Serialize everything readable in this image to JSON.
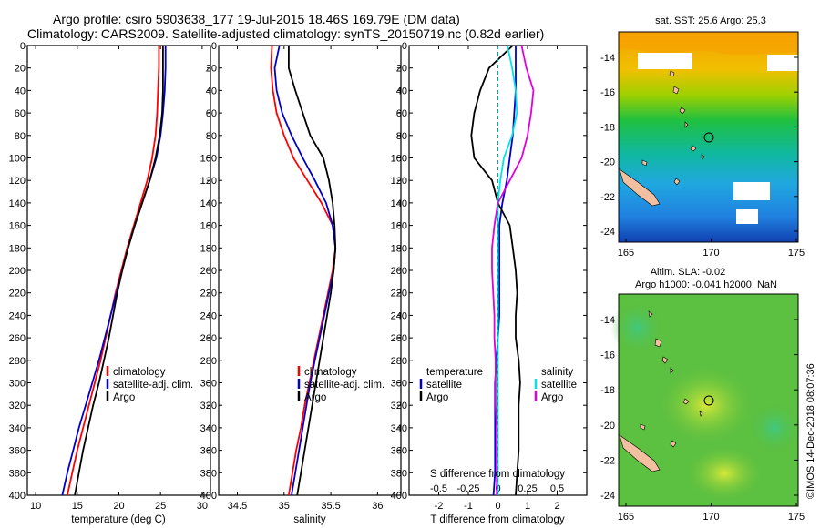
{
  "title": {
    "line1": "Argo profile: csiro 5903638_177 19-Jul-2015 18.46S 169.79E (DM data)",
    "line2": "Climatology: CARS2009. Satellite-adjusted climatology: synTS_20150719.nc (0.82d earlier)"
  },
  "depth_ticks": [
    0,
    20,
    40,
    60,
    80,
    100,
    120,
    140,
    160,
    180,
    200,
    220,
    240,
    260,
    280,
    300,
    320,
    340,
    360,
    380,
    400
  ],
  "colors": {
    "climatology": "#ff0000",
    "satellite": "#0000cc",
    "argo": "#000000",
    "sat_salinity": "#00e5e5",
    "argo_salinity": "#e000e0"
  },
  "legend": {
    "climatology": "climatology",
    "satellite_adj": "satellite-adj. clim.",
    "argo": "Argo"
  },
  "diff_legend": {
    "temperature": "temperature",
    "salinity": "salinity",
    "satellite": "satellite",
    "argo": "Argo"
  },
  "chart_data": [
    {
      "type": "line",
      "xlabel": "temperature (deg C)",
      "xlim": [
        9,
        31
      ],
      "ylim": [
        0,
        400
      ],
      "yinverted": true,
      "xticks": [
        10,
        15,
        20,
        25,
        30
      ],
      "series": [
        {
          "name": "climatology",
          "color": "#ff0000",
          "points": [
            [
              24.8,
              0
            ],
            [
              24.8,
              20
            ],
            [
              24.7,
              40
            ],
            [
              24.6,
              60
            ],
            [
              24.4,
              80
            ],
            [
              24.0,
              100
            ],
            [
              23.4,
              120
            ],
            [
              22.6,
              140
            ],
            [
              21.8,
              160
            ],
            [
              21.0,
              180
            ],
            [
              20.3,
              200
            ],
            [
              19.6,
              220
            ],
            [
              19.0,
              240
            ],
            [
              18.4,
              260
            ],
            [
              17.8,
              280
            ],
            [
              17.1,
              300
            ],
            [
              16.4,
              320
            ],
            [
              15.7,
              340
            ],
            [
              15.0,
              360
            ],
            [
              14.4,
              380
            ],
            [
              13.8,
              400
            ]
          ]
        },
        {
          "name": "satellite-adj. clim.",
          "color": "#0000cc",
          "points": [
            [
              25.6,
              0
            ],
            [
              25.6,
              20
            ],
            [
              25.5,
              40
            ],
            [
              25.3,
              60
            ],
            [
              25.0,
              80
            ],
            [
              24.5,
              100
            ],
            [
              23.7,
              120
            ],
            [
              22.8,
              140
            ],
            [
              21.9,
              160
            ],
            [
              21.1,
              180
            ],
            [
              20.4,
              200
            ],
            [
              19.7,
              220
            ],
            [
              19.0,
              240
            ],
            [
              18.3,
              260
            ],
            [
              17.6,
              280
            ],
            [
              16.8,
              300
            ],
            [
              16.0,
              320
            ],
            [
              15.2,
              340
            ],
            [
              14.5,
              360
            ],
            [
              13.8,
              380
            ],
            [
              13.2,
              400
            ]
          ]
        },
        {
          "name": "Argo",
          "color": "#000000",
          "points": [
            [
              25.3,
              0
            ],
            [
              25.3,
              20
            ],
            [
              25.3,
              40
            ],
            [
              25.2,
              60
            ],
            [
              24.9,
              80
            ],
            [
              24.4,
              100
            ],
            [
              23.7,
              120
            ],
            [
              22.8,
              140
            ],
            [
              21.9,
              160
            ],
            [
              21.1,
              180
            ],
            [
              20.4,
              200
            ],
            [
              19.8,
              220
            ],
            [
              19.3,
              240
            ],
            [
              18.8,
              260
            ],
            [
              18.2,
              280
            ],
            [
              17.6,
              300
            ],
            [
              16.9,
              320
            ],
            [
              16.3,
              340
            ],
            [
              15.7,
              360
            ],
            [
              15.2,
              380
            ],
            [
              14.7,
              400
            ]
          ]
        }
      ]
    },
    {
      "type": "line",
      "xlabel": "salinity",
      "xlim": [
        34.3,
        36.25
      ],
      "ylim": [
        0,
        400
      ],
      "yinverted": true,
      "xticks": [
        34.5,
        35,
        35.5,
        36
      ],
      "series": [
        {
          "name": "climatology",
          "color": "#ff0000",
          "points": [
            [
              34.87,
              0
            ],
            [
              34.86,
              20
            ],
            [
              34.88,
              40
            ],
            [
              34.92,
              60
            ],
            [
              35.0,
              80
            ],
            [
              35.1,
              100
            ],
            [
              35.25,
              120
            ],
            [
              35.4,
              140
            ],
            [
              35.52,
              160
            ],
            [
              35.55,
              180
            ],
            [
              35.52,
              200
            ],
            [
              35.47,
              220
            ],
            [
              35.42,
              240
            ],
            [
              35.37,
              260
            ],
            [
              35.32,
              280
            ],
            [
              35.27,
              300
            ],
            [
              35.22,
              320
            ],
            [
              35.18,
              340
            ],
            [
              35.13,
              360
            ],
            [
              35.09,
              380
            ],
            [
              35.05,
              400
            ]
          ]
        },
        {
          "name": "satellite-adj. clim.",
          "color": "#0000cc",
          "points": [
            [
              34.95,
              0
            ],
            [
              34.9,
              20
            ],
            [
              34.92,
              40
            ],
            [
              34.98,
              60
            ],
            [
              35.08,
              80
            ],
            [
              35.2,
              100
            ],
            [
              35.33,
              120
            ],
            [
              35.45,
              140
            ],
            [
              35.52,
              160
            ],
            [
              35.55,
              180
            ],
            [
              35.53,
              200
            ],
            [
              35.48,
              220
            ],
            [
              35.43,
              240
            ],
            [
              35.38,
              260
            ],
            [
              35.33,
              280
            ],
            [
              35.28,
              300
            ],
            [
              35.24,
              320
            ],
            [
              35.2,
              340
            ],
            [
              35.16,
              360
            ],
            [
              35.12,
              380
            ],
            [
              35.08,
              400
            ]
          ]
        },
        {
          "name": "Argo",
          "color": "#000000",
          "points": [
            [
              35.05,
              0
            ],
            [
              35.05,
              20
            ],
            [
              35.12,
              40
            ],
            [
              35.2,
              60
            ],
            [
              35.28,
              80
            ],
            [
              35.42,
              100
            ],
            [
              35.48,
              120
            ],
            [
              35.52,
              140
            ],
            [
              35.54,
              160
            ],
            [
              35.55,
              180
            ],
            [
              35.53,
              200
            ],
            [
              35.5,
              220
            ],
            [
              35.46,
              240
            ],
            [
              35.42,
              260
            ],
            [
              35.38,
              280
            ],
            [
              35.34,
              300
            ],
            [
              35.3,
              320
            ],
            [
              35.26,
              340
            ],
            [
              35.22,
              360
            ],
            [
              35.18,
              380
            ],
            [
              35.14,
              400
            ]
          ]
        }
      ]
    },
    {
      "type": "line",
      "xlabel": "T difference from climatology",
      "xlabel2": "S difference from climatology",
      "xlim": [
        -3,
        3
      ],
      "ylim": [
        0,
        400
      ],
      "yinverted": true,
      "xticks": [
        -2,
        -1,
        0,
        1,
        2
      ],
      "xticks2": [
        -0.5,
        -0.25,
        0,
        0.25,
        0.5
      ],
      "xtick2_labels": [
        "-0.5",
        "-0.25",
        "0",
        "0.25",
        "0.5"
      ],
      "series": [
        {
          "name": "T satellite",
          "color": "#0000cc",
          "points": [
            [
              0.6,
              0
            ],
            [
              0.6,
              20
            ],
            [
              0.6,
              40
            ],
            [
              0.55,
              60
            ],
            [
              0.5,
              80
            ],
            [
              0.4,
              100
            ],
            [
              0.3,
              120
            ],
            [
              0.15,
              140
            ],
            [
              0.05,
              160
            ],
            [
              0.05,
              180
            ],
            [
              0.05,
              200
            ],
            [
              0.05,
              220
            ],
            [
              0.05,
              240
            ],
            [
              0.0,
              260
            ],
            [
              -0.05,
              280
            ],
            [
              -0.1,
              300
            ],
            [
              -0.1,
              320
            ],
            [
              -0.1,
              340
            ],
            [
              -0.1,
              360
            ],
            [
              -0.1,
              380
            ],
            [
              -0.15,
              400
            ]
          ]
        },
        {
          "name": "T Argo",
          "color": "#000000",
          "points": [
            [
              0.5,
              0
            ],
            [
              -0.3,
              20
            ],
            [
              -0.6,
              40
            ],
            [
              -0.8,
              60
            ],
            [
              -0.9,
              80
            ],
            [
              -0.8,
              100
            ],
            [
              -0.2,
              120
            ],
            [
              0.0,
              140
            ],
            [
              0.4,
              160
            ],
            [
              0.5,
              180
            ],
            [
              0.6,
              200
            ],
            [
              0.65,
              220
            ],
            [
              0.6,
              240
            ],
            [
              0.6,
              260
            ],
            [
              0.7,
              280
            ],
            [
              0.75,
              300
            ],
            [
              0.7,
              320
            ],
            [
              0.7,
              340
            ],
            [
              0.7,
              360
            ],
            [
              0.65,
              380
            ],
            [
              0.6,
              400
            ]
          ]
        },
        {
          "name": "S satellite",
          "color": "#00e5e5",
          "points": [
            [
              0.08,
              0
            ],
            [
              0.12,
              20
            ],
            [
              0.15,
              40
            ],
            [
              0.16,
              60
            ],
            [
              0.12,
              80
            ],
            [
              0.05,
              100
            ],
            [
              0.02,
              120
            ],
            [
              0.0,
              140
            ],
            [
              0.0,
              160
            ],
            [
              0.0,
              180
            ],
            [
              0.0,
              200
            ],
            [
              0.0,
              220
            ],
            [
              0.0,
              240
            ],
            [
              0.0,
              260
            ],
            [
              0.0,
              280
            ],
            [
              0.0,
              300
            ],
            [
              0.0,
              320
            ],
            [
              0.0,
              340
            ],
            [
              0.0,
              360
            ],
            [
              0.0,
              380
            ],
            [
              0.0,
              400
            ]
          ]
        },
        {
          "name": "S Argo",
          "color": "#e000e0",
          "points": [
            [
              0.2,
              0
            ],
            [
              0.24,
              20
            ],
            [
              0.3,
              40
            ],
            [
              0.28,
              60
            ],
            [
              0.25,
              80
            ],
            [
              0.2,
              100
            ],
            [
              0.1,
              120
            ],
            [
              0.0,
              140
            ],
            [
              -0.03,
              160
            ],
            [
              -0.05,
              180
            ],
            [
              -0.05,
              200
            ],
            [
              -0.04,
              220
            ],
            [
              -0.03,
              240
            ],
            [
              -0.03,
              260
            ],
            [
              -0.02,
              280
            ],
            [
              -0.02,
              300
            ],
            [
              -0.02,
              320
            ],
            [
              -0.01,
              340
            ],
            [
              -0.01,
              360
            ],
            [
              -0.01,
              380
            ],
            [
              -0.01,
              400
            ]
          ]
        }
      ]
    }
  ],
  "maps": {
    "sst": {
      "title": "sat. SST: 25.6 Argo: 25.3",
      "yticks": [
        "-14",
        "-16",
        "-18",
        "-20",
        "-22",
        "-24"
      ],
      "xticks": [
        "165",
        "170",
        "175"
      ]
    },
    "sla": {
      "title_line1": "Altim. SLA: -0.02",
      "title_line2": "Argo h1000: -0.041 h2000: NaN",
      "yticks": [
        "-14",
        "-16",
        "-18",
        "-20",
        "-22",
        "-24"
      ],
      "xticks": [
        "165",
        "170",
        "175"
      ]
    }
  },
  "stamp": "©IMOS 14-Dec-2018 08:07:36"
}
